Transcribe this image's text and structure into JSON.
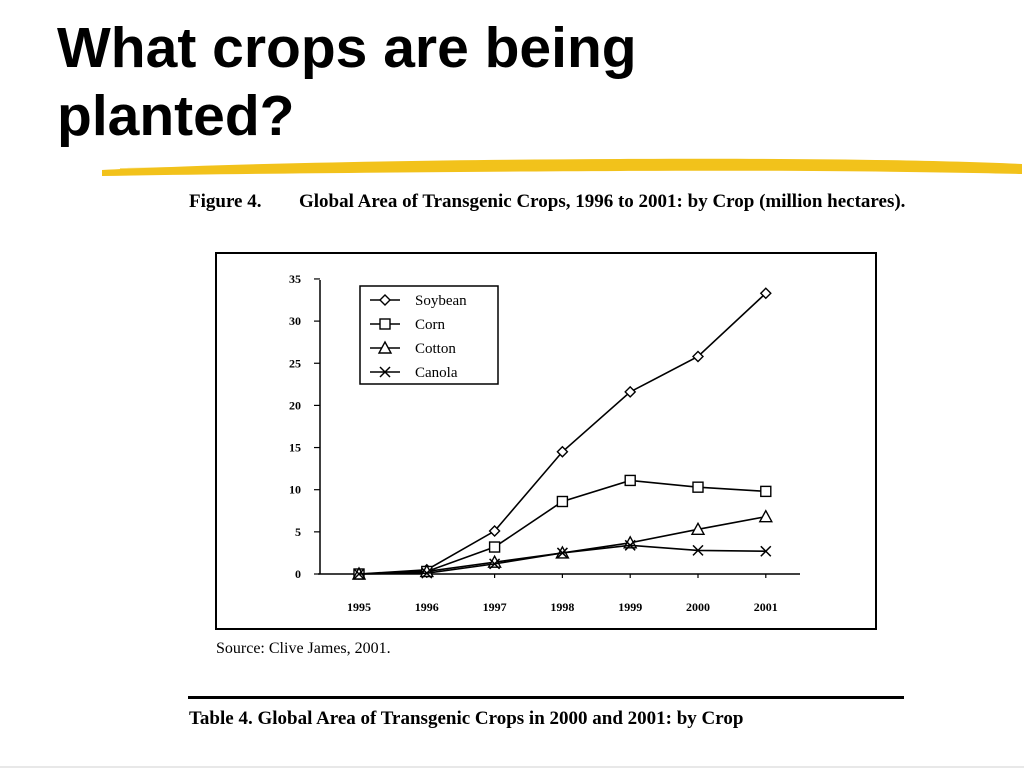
{
  "slide": {
    "title": "What crops are being planted?",
    "accent_color": "#f2c21b"
  },
  "figure": {
    "number": "Figure 4.",
    "caption": "Global Area of Transgenic Crops, 1996 to 2001: by Crop (million hectares).",
    "source": "Source:  Clive James, 2001."
  },
  "table": {
    "caption": "Table 4. Global Area of Transgenic Crops in 2000 and 2001:  by Crop"
  },
  "chart_data": {
    "type": "line",
    "title": "",
    "xlabel": "",
    "ylabel": "",
    "x": [
      "1995",
      "1996",
      "1997",
      "1998",
      "1999",
      "2000",
      "2001"
    ],
    "ylim": [
      0,
      35
    ],
    "yticks": [
      "0",
      "5",
      "10",
      "15",
      "20",
      "25",
      "30",
      "35"
    ],
    "grid": false,
    "legend_position": "top-left",
    "series": [
      {
        "name": "Soybean",
        "marker": "diamond",
        "values": [
          0,
          0.5,
          5.1,
          14.5,
          21.6,
          25.8,
          33.3
        ]
      },
      {
        "name": "Corn",
        "marker": "square",
        "values": [
          0,
          0.3,
          3.2,
          8.6,
          11.1,
          10.3,
          9.8
        ]
      },
      {
        "name": "Cotton",
        "marker": "triangle",
        "values": [
          0,
          0.3,
          1.4,
          2.5,
          3.7,
          5.3,
          6.8
        ]
      },
      {
        "name": "Canola",
        "marker": "x",
        "values": [
          0,
          0.1,
          1.2,
          2.5,
          3.4,
          2.8,
          2.7
        ]
      }
    ]
  }
}
